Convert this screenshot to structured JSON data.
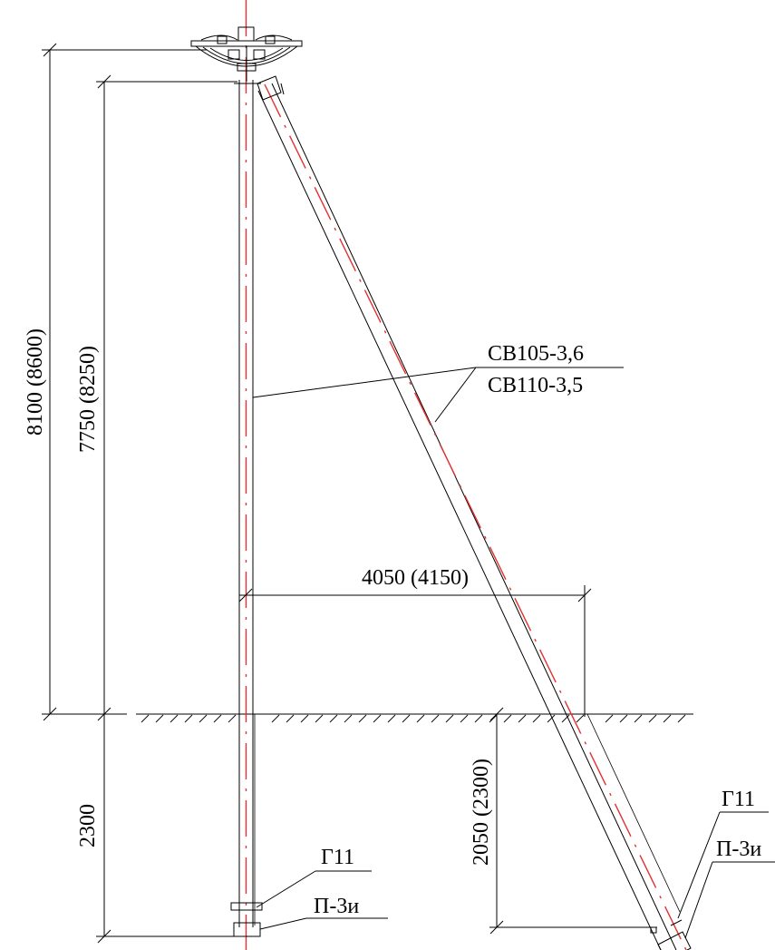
{
  "dimensions": {
    "total_height": "8100 (8600)",
    "above_ground_height": "7750 (8250)",
    "buried_depth_pole": "2300",
    "strut_spacing": "4050 (4150)",
    "buried_depth_strut": "2050 (2300)"
  },
  "callouts": {
    "pole_type_1": "СВ105-3,6",
    "pole_type_2": "СВ110-3,5",
    "pole_clamp": "Г11",
    "pole_slab": "П-3и",
    "strut_clamp": "Г11",
    "strut_slab": "П-3и"
  },
  "colors": {
    "line": "#000000",
    "axis": "#e53030",
    "background": "#ffffff"
  }
}
